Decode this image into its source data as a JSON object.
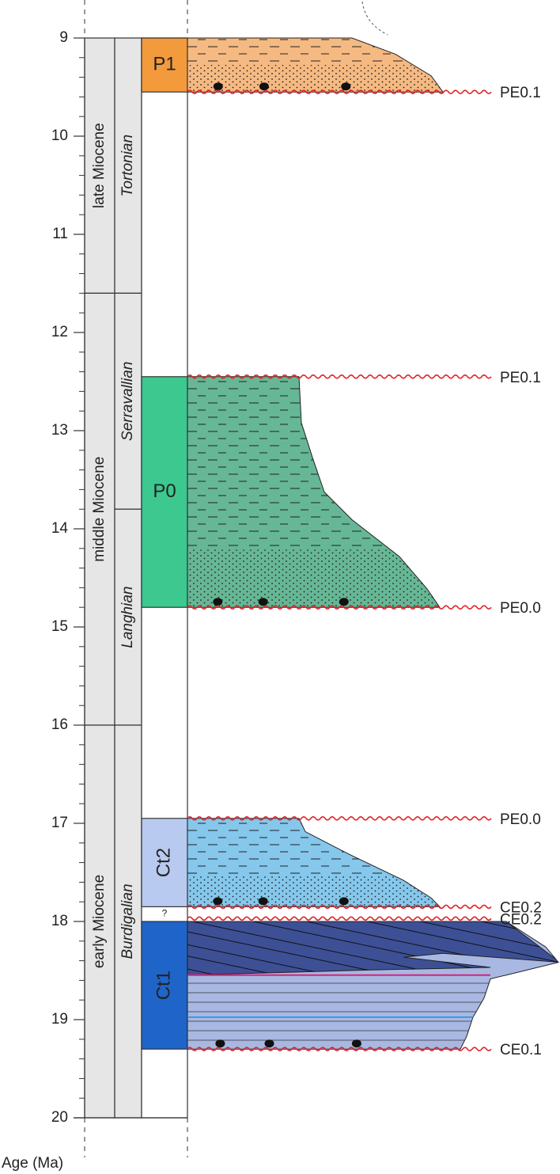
{
  "axis": {
    "title": "Age (Ma)",
    "ylim": [
      9,
      20
    ],
    "yticks": [
      9,
      10,
      11,
      12,
      13,
      14,
      15,
      16,
      17,
      18,
      19,
      20
    ]
  },
  "epochs": [
    {
      "label": "late Miocene",
      "start": 9,
      "end": 11.6
    },
    {
      "label": "middle Miocene",
      "start": 11.6,
      "end": 16
    },
    {
      "label": "early Miocene",
      "start": 16,
      "end": 20
    }
  ],
  "stages": [
    {
      "label": "Tortonian",
      "start": 9,
      "end": 11.6
    },
    {
      "label": "Serravallian",
      "start": 11.6,
      "end": 13.8
    },
    {
      "label": "Langhian",
      "start": 13.8,
      "end": 16
    },
    {
      "label": "Burdigalian",
      "start": 16,
      "end": 20
    }
  ],
  "units": [
    {
      "label": "P1",
      "start": 9,
      "end": 9.55,
      "color": "#f39a3c",
      "vertical_label": false
    },
    {
      "label": "P0",
      "start": 12.45,
      "end": 14.8,
      "color": "#3cc88f",
      "vertical_label": false
    },
    {
      "label": "Ct2",
      "start": 16.95,
      "end": 17.85,
      "color": "#b9caf0",
      "vertical_label": true
    },
    {
      "label": "Ct1",
      "start": 18.0,
      "end": 19.3,
      "color": "#1f64c9",
      "vertical_label": true
    }
  ],
  "uncertain_mark": {
    "label": "?",
    "age": 17.92
  },
  "unconformities": [
    {
      "label": "PE0.1",
      "age": 9.55
    },
    {
      "label": "PE0.1",
      "age": 12.45
    },
    {
      "label": "PE0.0",
      "age": 14.8
    },
    {
      "label": "PE0.0",
      "age": 16.95
    },
    {
      "label": "CE0.2",
      "age": 17.85
    },
    {
      "label": "CE0.2",
      "age": 17.97
    },
    {
      "label": "CE0.1",
      "age": 19.3
    }
  ]
}
